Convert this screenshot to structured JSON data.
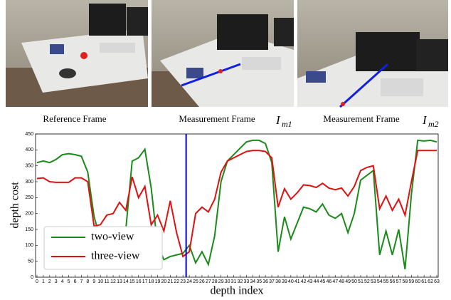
{
  "panels": [
    {
      "caption": "Reference Frame"
    },
    {
      "caption": "Measurement Frame",
      "symbol": "I",
      "subscript": "m1"
    },
    {
      "caption": "Measurement Frame",
      "symbol": "I",
      "subscript": "m2"
    }
  ],
  "chart_data": {
    "type": "line",
    "xlabel": "depth index",
    "ylabel": "depth cost",
    "x": [
      0,
      1,
      2,
      3,
      4,
      5,
      6,
      7,
      8,
      9,
      10,
      11,
      12,
      13,
      14,
      15,
      16,
      17,
      18,
      19,
      20,
      21,
      22,
      23,
      24,
      25,
      26,
      27,
      28,
      29,
      30,
      31,
      32,
      33,
      34,
      35,
      36,
      37,
      38,
      39,
      40,
      41,
      42,
      43,
      44,
      45,
      46,
      47,
      48,
      49,
      50,
      51,
      52,
      53,
      54,
      55,
      56,
      57,
      58,
      59,
      60,
      61,
      62,
      63
    ],
    "xlim": [
      0,
      63
    ],
    "xticks": [
      0,
      1,
      2,
      3,
      4,
      5,
      6,
      7,
      8,
      9,
      10,
      11,
      12,
      13,
      14,
      15,
      16,
      17,
      18,
      19,
      20,
      21,
      22,
      23,
      24,
      25,
      26,
      27,
      28,
      29,
      30,
      31,
      32,
      33,
      34,
      35,
      36,
      37,
      38,
      39,
      40,
      41,
      42,
      43,
      44,
      45,
      46,
      47,
      48,
      49,
      50,
      51,
      52,
      53,
      54,
      55,
      56,
      57,
      58,
      59,
      60,
      61,
      62,
      63
    ],
    "ylim": [
      0,
      450
    ],
    "yticks": [
      0,
      50,
      100,
      150,
      200,
      250,
      300,
      350,
      400,
      450
    ],
    "marker_x": 23.5,
    "marker_color": "#0000cc",
    "legend": "lower left",
    "series": [
      {
        "name": "two-view",
        "color": "#1a8a1a",
        "values": [
          360,
          365,
          360,
          370,
          385,
          388,
          385,
          380,
          330,
          190,
          120,
          130,
          140,
          130,
          150,
          365,
          375,
          402,
          280,
          100,
          55,
          65,
          70,
          75,
          100,
          45,
          80,
          40,
          130,
          300,
          365,
          385,
          405,
          425,
          430,
          430,
          420,
          360,
          80,
          190,
          120,
          170,
          220,
          215,
          205,
          230,
          195,
          185,
          200,
          140,
          200,
          305,
          320,
          335,
          70,
          145,
          70,
          150,
          25,
          260,
          430,
          428,
          430,
          425
        ]
      },
      {
        "name": "three-view",
        "color": "#e01010",
        "values": [
          310,
          312,
          300,
          298,
          298,
          298,
          312,
          312,
          300,
          160,
          165,
          195,
          200,
          235,
          210,
          315,
          250,
          285,
          165,
          195,
          145,
          240,
          140,
          65,
          80,
          200,
          220,
          205,
          245,
          330,
          365,
          375,
          385,
          395,
          398,
          398,
          395,
          375,
          220,
          278,
          245,
          265,
          290,
          288,
          282,
          295,
          280,
          275,
          280,
          255,
          285,
          335,
          345,
          350,
          215,
          255,
          210,
          245,
          195,
          300,
          398,
          398,
          398,
          398
        ]
      }
    ]
  }
}
